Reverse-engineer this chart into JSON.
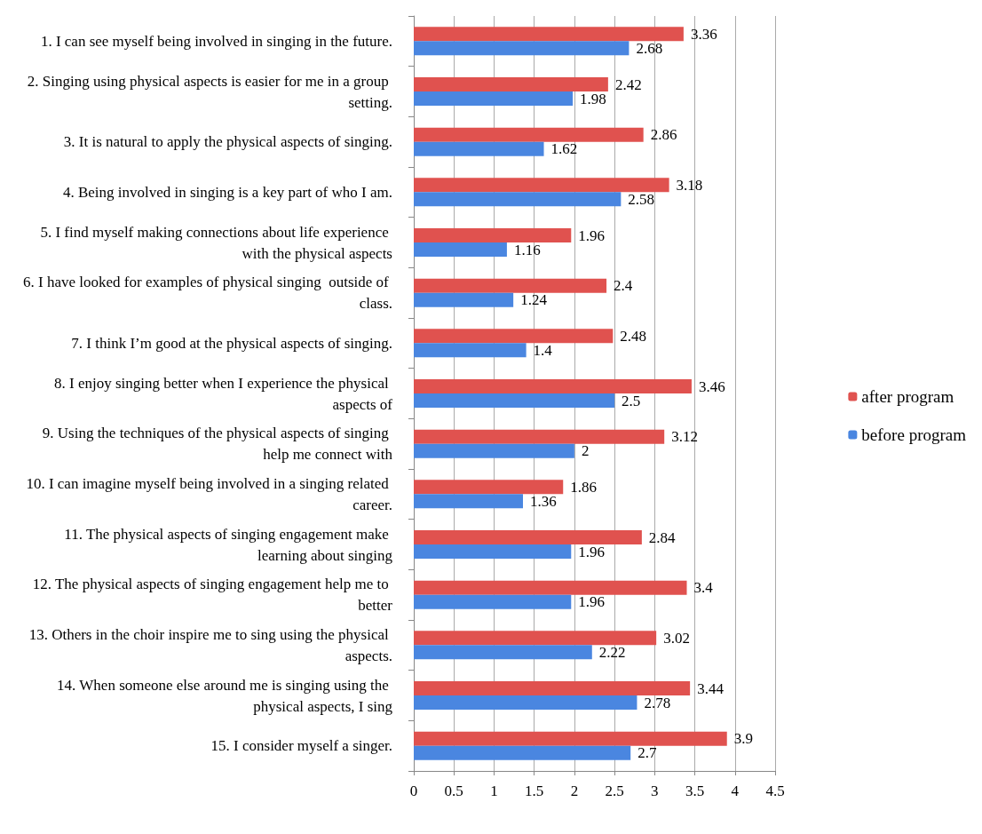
{
  "chart_data": {
    "type": "bar",
    "orientation": "horizontal",
    "categories": [
      "1. I can see myself being involved in singing in the future.",
      "2. Singing using physical aspects is easier for me in a group setting.",
      "3. It is natural to apply the physical aspects of singing.",
      "4. Being involved in singing is a key part of who I am.",
      "5. I find myself making connections about life experience with the physical aspects",
      "6. I have looked for examples of physical singing  outside of class.",
      "7. I think I’m good at the physical aspects of singing.",
      "8. I enjoy singing better when I experience the physical aspects of",
      "9. Using the techniques of the physical aspects of singing help me connect with",
      "10. I can imagine myself being involved in a singing related career.",
      "11. The physical aspects of singing engagement make learning about singing",
      "12. The physical aspects of singing engagement help me to better",
      "13. Others in the choir inspire me to sing using the physical aspects.",
      "14. When someone else around me is singing using the physical aspects, I sing",
      "15. I consider myself a singer."
    ],
    "series": [
      {
        "name": "after program",
        "color": "#e0524f",
        "values": [
          3.36,
          2.42,
          2.86,
          3.18,
          1.96,
          2.4,
          2.48,
          3.46,
          3.12,
          1.86,
          2.84,
          3.4,
          3.02,
          3.44,
          3.9
        ]
      },
      {
        "name": "before program",
        "color": "#4a86e0",
        "values": [
          2.68,
          1.98,
          1.62,
          2.58,
          1.16,
          1.24,
          1.4,
          2.5,
          2,
          1.36,
          1.96,
          1.96,
          2.22,
          2.78,
          2.7
        ]
      }
    ],
    "xlim": [
      0,
      4.5
    ],
    "xticks": [
      0,
      0.5,
      1,
      1.5,
      2,
      2.5,
      3,
      3.5,
      4,
      4.5
    ],
    "grid": "x",
    "legend": "right",
    "data_labels": true
  }
}
